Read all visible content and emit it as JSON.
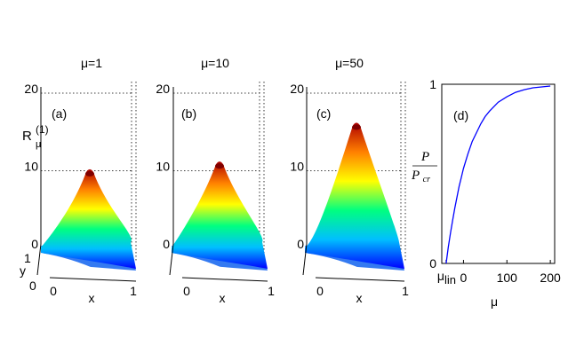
{
  "chart_data": [
    {
      "type": "surface",
      "panel_label": "(a)",
      "title": "μ=1",
      "zlabel": "R",
      "zlabel_sub": "μ",
      "zlabel_sup": "(1)",
      "xlabel": "x",
      "ylabel": "y",
      "zlim": [
        0,
        20
      ],
      "z_ticks": [
        "0",
        "10",
        "20"
      ],
      "x_ticks": [
        "0",
        "1"
      ],
      "y_ticks": [
        "0",
        "1"
      ],
      "peak_value": 9.5,
      "colormap": [
        "#0000ff",
        "#00bfff",
        "#00ff80",
        "#ffff00",
        "#ff8000",
        "#b00000"
      ]
    },
    {
      "type": "surface",
      "panel_label": "(b)",
      "title": "μ=10",
      "xlabel": "x",
      "ylabel": "",
      "zlim": [
        0,
        20
      ],
      "z_ticks": [
        "0",
        "10",
        "20"
      ],
      "x_ticks": [
        "0",
        "1"
      ],
      "peak_value": 10.5,
      "colormap": [
        "#0000ff",
        "#00bfff",
        "#00ff80",
        "#ffff00",
        "#ff8000",
        "#b00000"
      ]
    },
    {
      "type": "surface",
      "panel_label": "(c)",
      "title": "μ=50",
      "xlabel": "x",
      "ylabel": "",
      "zlim": [
        0,
        20
      ],
      "z_ticks": [
        "0",
        "10",
        "20"
      ],
      "x_ticks": [
        "0",
        "1"
      ],
      "peak_value": 15.5,
      "colormap": [
        "#0000ff",
        "#00bfff",
        "#00ff80",
        "#ffff00",
        "#ff8000",
        "#b00000"
      ]
    },
    {
      "type": "line",
      "panel_label": "(d)",
      "xlabel": "μ",
      "ylabel_num": "P",
      "ylabel_den": "P",
      "ylabel_den_sub": "cr",
      "xlim": [
        -50,
        210
      ],
      "ylim": [
        0,
        1
      ],
      "x_ticks": [
        {
          "value": -40,
          "label": "μ",
          "sub": "lin"
        },
        {
          "value": 0,
          "label": "0"
        },
        {
          "value": 100,
          "label": "100"
        },
        {
          "value": 200,
          "label": "200"
        }
      ],
      "y_ticks": [
        {
          "value": 0,
          "label": "0"
        },
        {
          "value": 1,
          "label": "1"
        }
      ],
      "series": [
        {
          "name": "P/Pcr",
          "color": "#0000ff",
          "x": [
            -40,
            -35,
            -30,
            -25,
            -20,
            -15,
            -10,
            -5,
            0,
            10,
            20,
            30,
            40,
            50,
            60,
            80,
            100,
            120,
            140,
            160,
            180,
            200
          ],
          "y": [
            0,
            0.09,
            0.17,
            0.24,
            0.31,
            0.37,
            0.43,
            0.48,
            0.53,
            0.61,
            0.68,
            0.73,
            0.78,
            0.82,
            0.85,
            0.9,
            0.93,
            0.955,
            0.97,
            0.98,
            0.985,
            0.99
          ]
        }
      ]
    }
  ]
}
